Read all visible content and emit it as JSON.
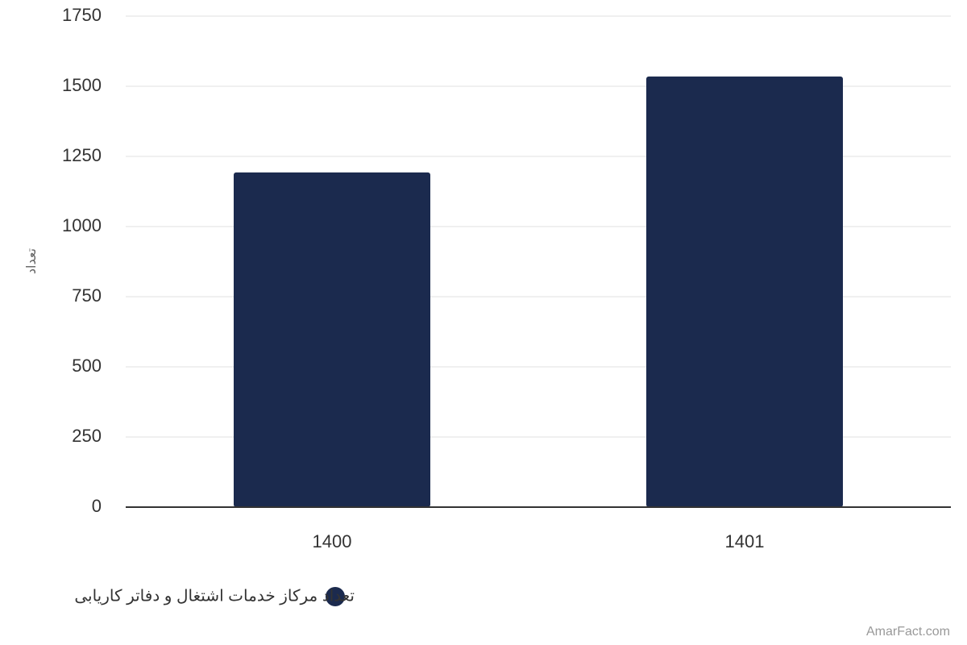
{
  "chart_data": {
    "type": "bar",
    "categories": [
      "1400",
      "1401"
    ],
    "series": [
      {
        "name": "تعداد مرکاز خدمات اشتغال و دفاتر کاریابی",
        "color": "#1b2a4e",
        "values": [
          1193,
          1535
        ]
      }
    ],
    "y_label": "تعداد",
    "ylim": [
      0,
      1750
    ],
    "yticks": [
      0,
      250,
      500,
      750,
      1000,
      1250,
      1500,
      1750
    ],
    "grid": true,
    "credits": "AmarFact.com"
  }
}
